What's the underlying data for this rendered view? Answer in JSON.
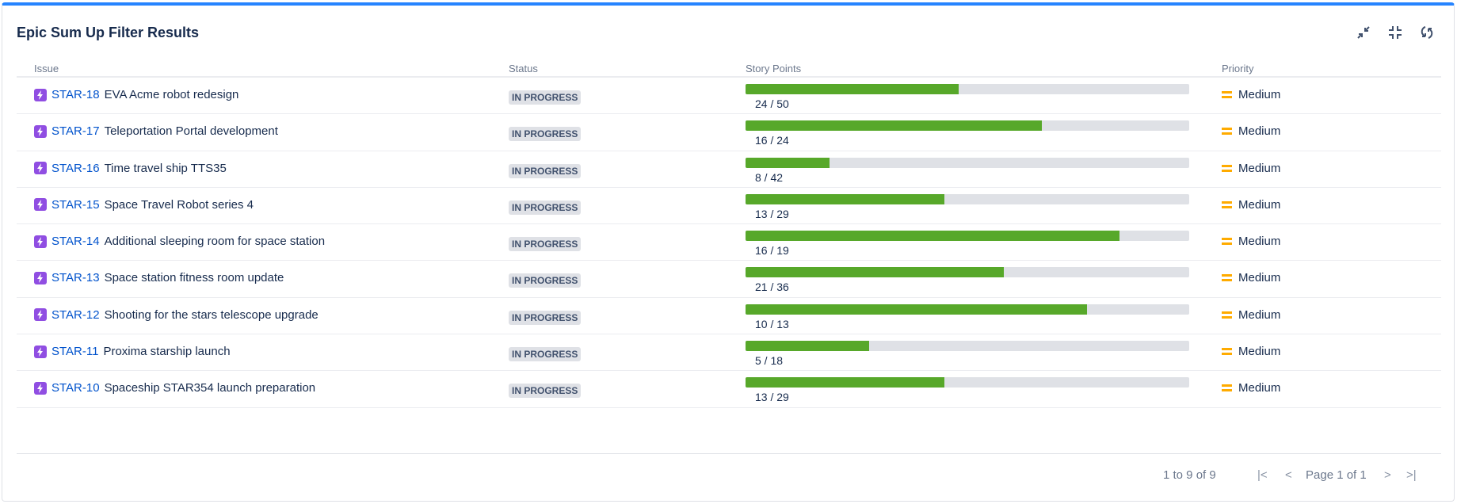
{
  "title": "Epic Sum Up Filter Results",
  "toolbar": {
    "icons": [
      "collapse-arrows-icon",
      "minimize-icon",
      "refresh-icon"
    ]
  },
  "columns": {
    "issue": "Issue",
    "status": "Status",
    "story_points": "Story Points",
    "priority": "Priority"
  },
  "rows": [
    {
      "key": "STAR-18",
      "summary": "EVA Acme robot redesign",
      "status": "IN PROGRESS",
      "done": 24,
      "total": 50,
      "points": "24 / 50",
      "priority": "Medium"
    },
    {
      "key": "STAR-17",
      "summary": "Teleportation Portal development",
      "status": "IN PROGRESS",
      "done": 16,
      "total": 24,
      "points": "16 / 24",
      "priority": "Medium"
    },
    {
      "key": "STAR-16",
      "summary": "Time travel ship TTS35",
      "status": "IN PROGRESS",
      "done": 8,
      "total": 42,
      "points": "8 / 42",
      "priority": "Medium"
    },
    {
      "key": "STAR-15",
      "summary": "Space Travel Robot series 4",
      "status": "IN PROGRESS",
      "done": 13,
      "total": 29,
      "points": "13 / 29",
      "priority": "Medium"
    },
    {
      "key": "STAR-14",
      "summary": "Additional sleeping room for space station",
      "status": "IN PROGRESS",
      "done": 16,
      "total": 19,
      "points": "16 / 19",
      "priority": "Medium"
    },
    {
      "key": "STAR-13",
      "summary": "Space station fitness room update",
      "status": "IN PROGRESS",
      "done": 21,
      "total": 36,
      "points": "21 / 36",
      "priority": "Medium"
    },
    {
      "key": "STAR-12",
      "summary": "Shooting for the stars telescope upgrade",
      "status": "IN PROGRESS",
      "done": 10,
      "total": 13,
      "points": "10 / 13",
      "priority": "Medium"
    },
    {
      "key": "STAR-11",
      "summary": "Proxima starship launch",
      "status": "IN PROGRESS",
      "done": 5,
      "total": 18,
      "points": "5 / 18",
      "priority": "Medium"
    },
    {
      "key": "STAR-10",
      "summary": "Spaceship STAR354 launch preparation",
      "status": "IN PROGRESS",
      "done": 13,
      "total": 29,
      "points": "13 / 29",
      "priority": "Medium"
    }
  ],
  "pagination": {
    "range": "1 to 9 of 9",
    "page": "Page 1 of 1",
    "first": "|<",
    "prev": "<",
    "next": ">",
    "last": ">|"
  }
}
